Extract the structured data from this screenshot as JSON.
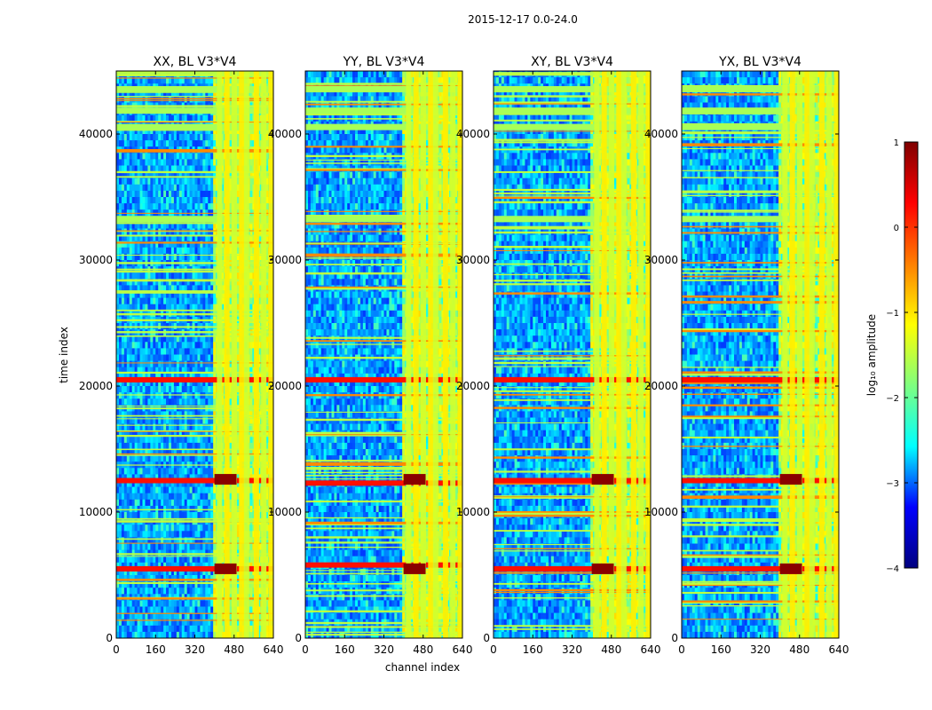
{
  "figure": {
    "title": "2015-12-17 0.0-24.0",
    "xlabel": "channel index",
    "ylabel": "time index"
  },
  "colorbar": {
    "label": "log₁₀ amplitude",
    "ticks": [
      1,
      0,
      -1,
      -2,
      -3,
      -4
    ],
    "tick_labels": [
      "1",
      "0",
      "−1",
      "−2",
      "−3",
      "−4"
    ],
    "range": [
      -4,
      1
    ],
    "colormap": "jet",
    "colors": [
      "#00007f",
      "#0000ff",
      "#00ffff",
      "#7fff7f",
      "#ffff00",
      "#ff7f00",
      "#ff0000",
      "#7f0000"
    ]
  },
  "chart_data": [
    {
      "type": "heatmap",
      "title": "XX, BL V3*V4",
      "xlabel": "",
      "ylabel": "time index",
      "xlim": [
        0,
        640
      ],
      "ylim": [
        0,
        45000
      ],
      "xticks": [
        0,
        160,
        320,
        480,
        640
      ],
      "yticks": [
        0,
        10000,
        20000,
        30000,
        40000
      ],
      "ytick_labels": [
        "0",
        "10000",
        "20000",
        "30000",
        "40000"
      ],
      "rfi_channel_band": [
        400,
        640
      ],
      "strong_bands_time": [
        5500,
        12500,
        20500
      ]
    },
    {
      "type": "heatmap",
      "title": "YY, BL V3*V4",
      "xlabel": "channel index",
      "ylabel": "",
      "xlim": [
        0,
        640
      ],
      "ylim": [
        0,
        45000
      ],
      "xticks": [
        0,
        160,
        320,
        480,
        640
      ],
      "yticks": [
        0,
        10000,
        20000,
        30000,
        40000
      ],
      "ytick_labels": [
        "0",
        "10000",
        "20000",
        "30000",
        "40000"
      ],
      "rfi_channel_band": [
        400,
        640
      ],
      "strong_bands_time": [
        5800,
        12300,
        20500
      ]
    },
    {
      "type": "heatmap",
      "title": "XY, BL V3*V4",
      "xlabel": "",
      "ylabel": "",
      "xlim": [
        0,
        640
      ],
      "ylim": [
        0,
        45000
      ],
      "xticks": [
        0,
        160,
        320,
        480,
        640
      ],
      "yticks": [
        0,
        10000,
        20000,
        30000,
        40000
      ],
      "ytick_labels": [
        "0",
        "10000",
        "20000",
        "30000",
        "40000"
      ],
      "rfi_channel_band": [
        400,
        640
      ],
      "strong_bands_time": [
        5500,
        12500,
        20500
      ]
    },
    {
      "type": "heatmap",
      "title": "YX, BL V3*V4",
      "xlabel": "",
      "ylabel": "",
      "xlim": [
        0,
        640
      ],
      "ylim": [
        0,
        45000
      ],
      "xticks": [
        0,
        160,
        320,
        480,
        640
      ],
      "yticks": [
        0,
        10000,
        20000,
        30000,
        40000
      ],
      "ytick_labels": [
        "0",
        "10000",
        "20000",
        "30000",
        "40000"
      ],
      "rfi_channel_band": [
        400,
        640
      ],
      "strong_bands_time": [
        5500,
        12500,
        20500
      ]
    }
  ]
}
